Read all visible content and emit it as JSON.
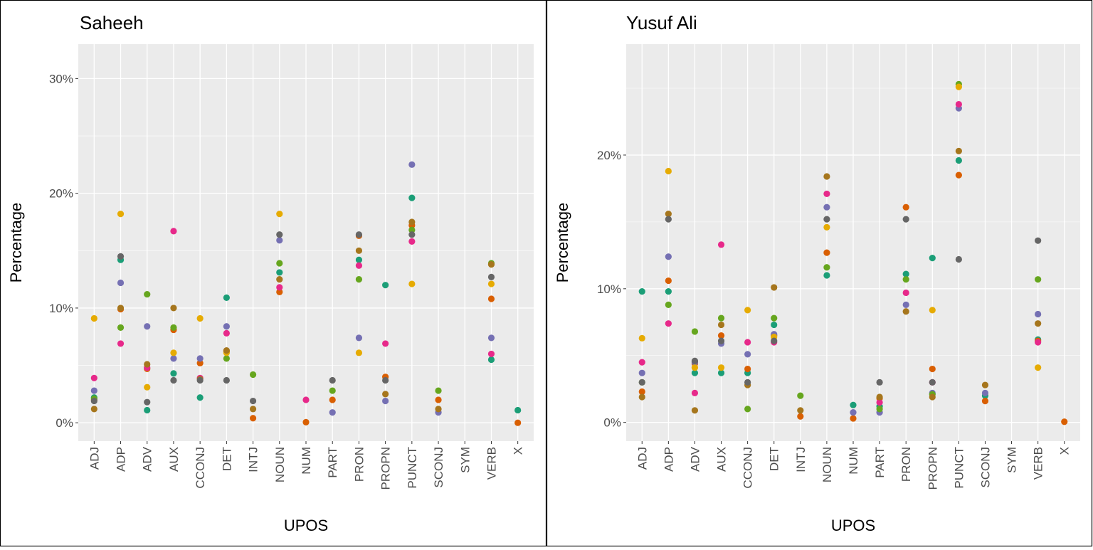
{
  "colors": [
    "#1B9E77",
    "#D95F02",
    "#7570B3",
    "#E7298A",
    "#66A61E",
    "#E6AB02",
    "#A6761D",
    "#666666"
  ],
  "chart_data": [
    {
      "type": "scatter",
      "title": "Saheeh",
      "xlabel": "UPOS",
      "ylabel": "Percentage",
      "categories": [
        "ADJ",
        "ADP",
        "ADV",
        "AUX",
        "CCONJ",
        "DET",
        "INTJ",
        "NOUN",
        "NUM",
        "PART",
        "PRON",
        "PROPN",
        "PUNCT",
        "SCONJ",
        "SYM",
        "VERB",
        "X"
      ],
      "ylim": [
        -1.6,
        33
      ],
      "yticks": [
        0,
        10,
        20,
        30
      ],
      "ytick_labels": [
        "0%",
        "10%",
        "20%",
        "30%"
      ],
      "grid": true,
      "series": [
        {
          "color": "#1B9E77",
          "values": [
            2.2,
            14.2,
            1.1,
            4.3,
            2.2,
            10.9,
            null,
            13.1,
            null,
            null,
            14.2,
            12.0,
            19.6,
            null,
            null,
            5.5,
            1.1
          ]
        },
        {
          "color": "#D95F02",
          "values": [
            2.0,
            9.9,
            4.7,
            8.1,
            5.2,
            6.2,
            0.4,
            11.4,
            0.05,
            2.0,
            16.3,
            4.0,
            17.2,
            2.0,
            null,
            10.8,
            0.0
          ]
        },
        {
          "color": "#7570B3",
          "values": [
            2.8,
            12.2,
            8.4,
            5.6,
            5.6,
            8.4,
            null,
            15.9,
            null,
            0.9,
            7.4,
            1.9,
            22.5,
            0.9,
            null,
            7.4,
            null
          ]
        },
        {
          "color": "#E7298A",
          "values": [
            3.9,
            6.9,
            4.8,
            16.7,
            3.9,
            7.8,
            null,
            11.8,
            2.0,
            null,
            13.7,
            6.9,
            15.8,
            null,
            null,
            6.0,
            null
          ]
        },
        {
          "color": "#66A61E",
          "values": [
            2.1,
            8.3,
            11.2,
            8.3,
            null,
            5.6,
            4.2,
            13.9,
            null,
            2.8,
            12.5,
            null,
            16.8,
            2.8,
            null,
            13.9,
            null
          ]
        },
        {
          "color": "#E6AB02",
          "values": [
            9.1,
            18.2,
            3.1,
            6.1,
            9.1,
            6.1,
            null,
            18.2,
            null,
            null,
            6.1,
            null,
            12.1,
            null,
            null,
            12.1,
            null
          ]
        },
        {
          "color": "#A6761D",
          "values": [
            1.2,
            10.0,
            5.1,
            10.0,
            3.8,
            6.3,
            1.2,
            12.5,
            null,
            null,
            15.0,
            2.5,
            17.5,
            1.2,
            null,
            13.8,
            null
          ]
        },
        {
          "color": "#666666",
          "values": [
            1.9,
            14.5,
            1.8,
            3.7,
            3.7,
            3.7,
            1.9,
            16.4,
            null,
            3.7,
            16.4,
            3.7,
            16.4,
            null,
            null,
            12.7,
            null
          ]
        }
      ]
    },
    {
      "type": "scatter",
      "title": "Yusuf Ali",
      "xlabel": "UPOS",
      "ylabel": "Percentage",
      "categories": [
        "ADJ",
        "ADP",
        "ADV",
        "AUX",
        "CCONJ",
        "DET",
        "INTJ",
        "NOUN",
        "NUM",
        "PART",
        "PRON",
        "PROPN",
        "PUNCT",
        "SCONJ",
        "SYM",
        "VERB",
        "X"
      ],
      "ylim": [
        -1.4,
        28.3
      ],
      "yticks": [
        0,
        10,
        20
      ],
      "ytick_labels": [
        "0%",
        "10%",
        "20%"
      ],
      "grid": true,
      "series": [
        {
          "color": "#1B9E77",
          "values": [
            9.8,
            9.8,
            3.7,
            3.7,
            3.7,
            7.3,
            null,
            11.0,
            1.3,
            1.2,
            11.1,
            12.3,
            19.6,
            2.0,
            null,
            6.2,
            null
          ]
        },
        {
          "color": "#D95F02",
          "values": [
            2.3,
            10.6,
            4.4,
            6.5,
            4.0,
            6.5,
            0.45,
            12.7,
            0.3,
            1.8,
            16.1,
            4.0,
            18.5,
            1.6,
            null,
            6.1,
            0.05
          ]
        },
        {
          "color": "#7570B3",
          "values": [
            3.7,
            12.4,
            4.5,
            5.9,
            5.1,
            6.6,
            null,
            16.1,
            0.75,
            0.75,
            8.8,
            2.2,
            23.5,
            2.2,
            null,
            8.1,
            null
          ]
        },
        {
          "color": "#E7298A",
          "values": [
            4.5,
            7.4,
            2.2,
            13.3,
            6.0,
            6.0,
            null,
            17.1,
            null,
            1.5,
            9.7,
            3.0,
            23.8,
            null,
            null,
            6.0,
            null
          ]
        },
        {
          "color": "#66A61E",
          "values": [
            3.0,
            8.8,
            6.8,
            7.8,
            1.0,
            7.8,
            2.0,
            11.6,
            null,
            1.0,
            10.7,
            2.1,
            25.3,
            null,
            null,
            10.7,
            null
          ]
        },
        {
          "color": "#E6AB02",
          "values": [
            6.3,
            18.8,
            4.1,
            4.1,
            8.4,
            6.4,
            null,
            14.6,
            null,
            null,
            null,
            8.4,
            25.1,
            null,
            null,
            4.1,
            null
          ]
        },
        {
          "color": "#A6761D",
          "values": [
            1.9,
            15.6,
            0.9,
            7.3,
            2.8,
            10.1,
            0.9,
            18.4,
            null,
            1.9,
            8.3,
            1.9,
            20.3,
            2.8,
            null,
            7.4,
            null
          ]
        },
        {
          "color": "#666666",
          "values": [
            3.0,
            15.2,
            4.6,
            6.1,
            3.0,
            6.1,
            null,
            15.2,
            null,
            3.0,
            15.2,
            3.0,
            12.2,
            null,
            null,
            13.6,
            null
          ]
        }
      ]
    }
  ]
}
